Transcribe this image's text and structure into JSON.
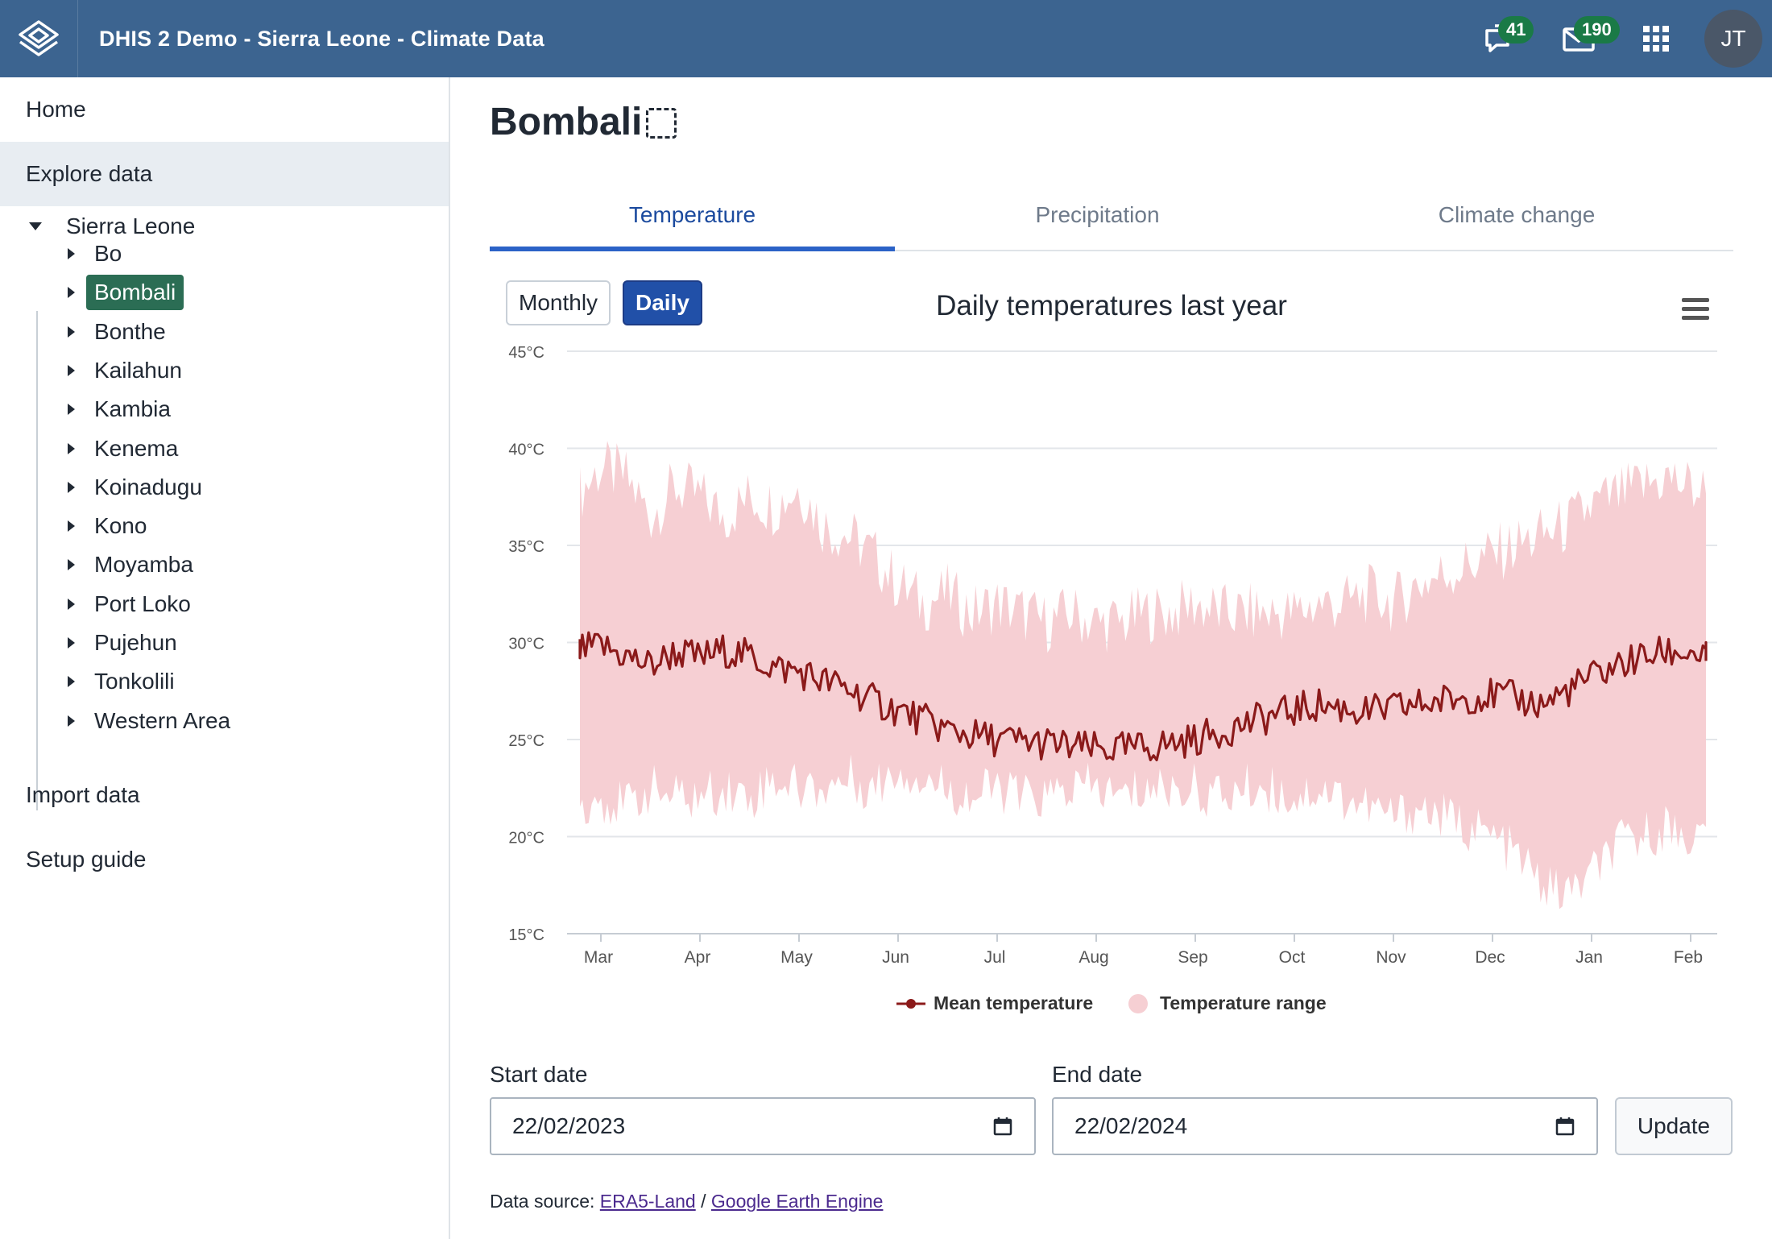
{
  "header": {
    "title": "DHIS 2 Demo - Sierra Leone - Climate Data",
    "interpretations_count": "41",
    "messages_count": "190",
    "avatar_initials": "JT"
  },
  "sidebar": {
    "home": "Home",
    "explore": "Explore data",
    "tree_root": "Sierra Leone",
    "districts": [
      "Bo",
      "Bombali",
      "Bonthe",
      "Kailahun",
      "Kambia",
      "Kenema",
      "Koinadugu",
      "Kono",
      "Moyamba",
      "Port Loko",
      "Pujehun",
      "Tonkolili",
      "Western Area"
    ],
    "selected": "Bombali",
    "import": "Import data",
    "setup": "Setup guide"
  },
  "main": {
    "title": "Bombali",
    "tabs": [
      {
        "label": "Temperature",
        "active": true
      },
      {
        "label": "Precipitation",
        "active": false
      },
      {
        "label": "Climate change",
        "active": false
      }
    ],
    "toggle": {
      "monthly": "Monthly",
      "daily": "Daily",
      "selected": "Daily"
    },
    "start_label": "Start date",
    "start_value": "22/02/2023",
    "end_label": "End date",
    "end_value": "22/02/2024",
    "update_label": "Update",
    "source_prefix": "Data source:",
    "source_link1": "ERA5-Land",
    "source_sep": "/",
    "source_link2": "Google Earth Engine"
  },
  "colors": {
    "header": "#3c6490",
    "mean_line": "#8b1a1a",
    "range_fill": "#f6cfd3",
    "selected_node": "#2b6d54",
    "active_tab": "#2b62c7"
  },
  "chart_data": {
    "type": "area",
    "title": "Daily temperatures last year",
    "ylim": [
      15,
      45
    ],
    "y_ticks": [
      "15°C",
      "20°C",
      "25°C",
      "30°C",
      "35°C",
      "40°C",
      "45°C"
    ],
    "x_ticks": [
      "Mar",
      "Apr",
      "May",
      "Jun",
      "Jul",
      "Aug",
      "Sep",
      "Oct",
      "Nov",
      "Dec",
      "Jan",
      "Feb"
    ],
    "x_range": [
      "2023-02-22",
      "2024-02-22"
    ],
    "grid": true,
    "legend_position": "bottom",
    "series": [
      {
        "name": "Mean temperature",
        "type": "line",
        "x_month_index": [
          -0.25,
          0,
          0.25,
          0.5,
          0.75,
          1,
          1.25,
          1.5,
          1.75,
          2,
          2.25,
          2.5,
          2.75,
          3,
          3.25,
          3.5,
          3.75,
          4,
          4.25,
          4.5,
          4.75,
          5,
          5.25,
          5.5,
          5.75,
          6,
          6.25,
          6.5,
          6.75,
          7,
          7.25,
          7.5,
          7.75,
          8,
          8.25,
          8.5,
          8.75,
          9,
          9.25,
          9.5,
          9.75,
          10,
          10.25,
          10.5,
          10.75,
          11,
          11.25
        ],
        "values": [
          29.5,
          29.8,
          29.3,
          28.8,
          29.5,
          29.2,
          29.6,
          29.3,
          28.7,
          28.5,
          28.0,
          27.6,
          27.0,
          26.5,
          26.0,
          25.5,
          25.2,
          25.0,
          24.9,
          24.8,
          24.6,
          24.5,
          24.5,
          24.6,
          24.8,
          25.0,
          25.4,
          25.8,
          26.2,
          26.5,
          26.8,
          26.6,
          26.4,
          26.6,
          26.8,
          27.0,
          27.2,
          27.3,
          27.1,
          26.8,
          27.5,
          28.2,
          28.8,
          29.2,
          29.5,
          29.5,
          29.0
        ]
      },
      {
        "name": "Temperature range",
        "type": "arearange",
        "x_month_index": [
          -0.25,
          0,
          0.25,
          0.5,
          0.75,
          1,
          1.25,
          1.5,
          1.75,
          2,
          2.25,
          2.5,
          2.75,
          3,
          3.25,
          3.5,
          3.75,
          4,
          4.25,
          4.5,
          4.75,
          5,
          5.25,
          5.5,
          5.75,
          6,
          6.25,
          6.5,
          6.75,
          7,
          7.25,
          7.5,
          7.75,
          8,
          8.25,
          8.5,
          8.75,
          9,
          9.25,
          9.5,
          9.75,
          10,
          10.25,
          10.5,
          10.75,
          11,
          11.25
        ],
        "low": [
          21.5,
          22.0,
          21.5,
          22.5,
          22.0,
          22.0,
          22.5,
          22.0,
          23.0,
          22.5,
          22.5,
          23.0,
          22.5,
          23.5,
          23.0,
          22.5,
          22.0,
          22.5,
          22.0,
          22.0,
          22.5,
          22.5,
          22.0,
          22.5,
          22.5,
          22.5,
          22.0,
          22.5,
          22.5,
          22.0,
          22.5,
          22.0,
          21.5,
          21.0,
          21.5,
          21.0,
          20.5,
          20.0,
          19.0,
          17.5,
          17.0,
          18.0,
          19.5,
          20.0,
          20.5,
          20.0,
          20.0
        ],
        "high": [
          37.5,
          39.0,
          38.5,
          36.5,
          38.0,
          37.5,
          36.5,
          37.5,
          37.0,
          38.0,
          36.0,
          35.5,
          34.5,
          33.0,
          32.0,
          32.5,
          31.5,
          32.0,
          31.5,
          31.0,
          31.5,
          31.0,
          31.0,
          31.5,
          31.5,
          32.0,
          31.5,
          31.5,
          31.5,
          31.5,
          32.0,
          32.0,
          32.5,
          32.0,
          33.0,
          33.5,
          34.0,
          34.5,
          35.0,
          35.5,
          36.0,
          37.0,
          37.5,
          38.0,
          38.5,
          38.0,
          37.5
        ]
      }
    ]
  }
}
